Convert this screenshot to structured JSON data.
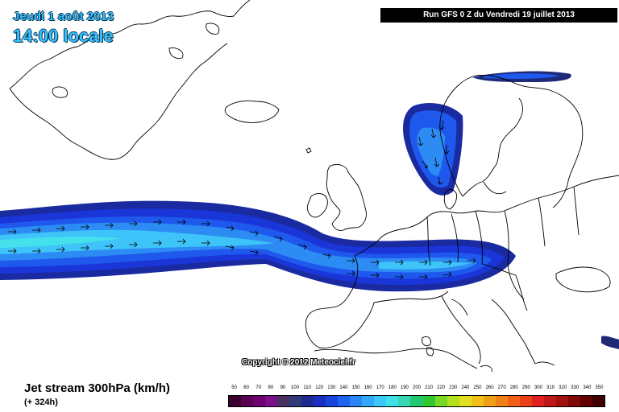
{
  "header": {
    "date": "Jeudi 1 août 2013",
    "time": "14:00 locale",
    "run": "Run GFS 0 Z du Vendredi 19 juillet 2013"
  },
  "map": {
    "copyright": "Copyright © 2012 Meteociel.fr",
    "land_outline_color": "#000000",
    "background_color": "#ffffff"
  },
  "legend": {
    "title": "Jet stream 300hPa (km/h)",
    "forecast_offset": "(+ 324h)",
    "scale_values": [
      "50",
      "60",
      "70",
      "80",
      "90",
      "100",
      "110",
      "120",
      "130",
      "140",
      "150",
      "160",
      "170",
      "180",
      "190",
      "200",
      "210",
      "220",
      "230",
      "240",
      "250",
      "260",
      "270",
      "280",
      "290",
      "300",
      "310",
      "320",
      "330",
      "340",
      "350"
    ],
    "scale_colors": [
      "#3c0030",
      "#5a0050",
      "#6e0070",
      "#7a1088",
      "#483060",
      "#303a78",
      "#1e2a90",
      "#1a30c0",
      "#1a44e0",
      "#1e64f0",
      "#2a86f4",
      "#34a8f8",
      "#3ec8f8",
      "#40e0e8",
      "#36d8b4",
      "#24c870",
      "#30c830",
      "#78d828",
      "#b0e020",
      "#e0e020",
      "#f0c018",
      "#f0a018",
      "#f08018",
      "#f06018",
      "#e84018",
      "#e02020",
      "#c01818",
      "#a01010",
      "#800808",
      "#600000",
      "#400000"
    ],
    "shown_range": [
      50,
      350
    ]
  }
}
